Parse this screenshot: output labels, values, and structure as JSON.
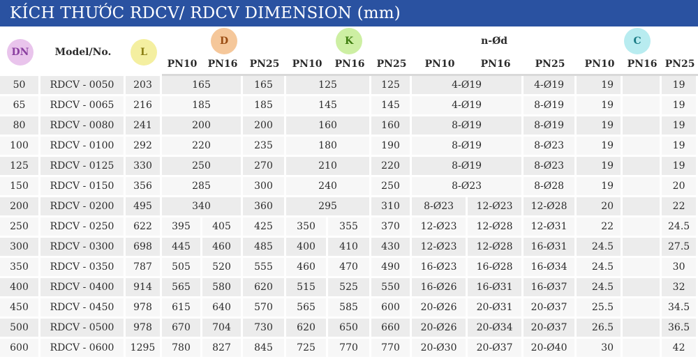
{
  "title": "KÍCH THƯỚC RDCV/ RDCV DIMENSION (mm)",
  "headers": {
    "dn": "DN",
    "model": "Model/No.",
    "l": "L",
    "d": "D",
    "k": "K",
    "nod": "n-Ød",
    "c": "C",
    "pn10": "PN10",
    "pn16": "PN16",
    "pn25": "PN25"
  },
  "colors": {
    "title_bar": "#2a52a1",
    "dn_bubble": "#e9c4ec",
    "l_bubble": "#f4efa0",
    "d_bubble": "#f5c79a",
    "k_bubble": "#cdefa3",
    "c_bubble": "#b8ecf0"
  },
  "rows": [
    {
      "dn": "50",
      "model": "RDCV - 0050",
      "l": "203",
      "d_merged": "165",
      "d25": "165",
      "k_merged": "125",
      "k25": "125",
      "n_merged": "4-Ø19",
      "n25": "4-Ø19",
      "c10": "19",
      "c16": "",
      "c25": "19"
    },
    {
      "dn": "65",
      "model": "RDCV - 0065",
      "l": "216",
      "d_merged": "185",
      "d25": "185",
      "k_merged": "145",
      "k25": "145",
      "n_merged": "4-Ø19",
      "n25": "8-Ø19",
      "c10": "19",
      "c16": "",
      "c25": "19"
    },
    {
      "dn": "80",
      "model": "RDCV - 0080",
      "l": "241",
      "d_merged": "200",
      "d25": "200",
      "k_merged": "160",
      "k25": "160",
      "n_merged": "8-Ø19",
      "n25": "8-Ø19",
      "c10": "19",
      "c16": "",
      "c25": "19"
    },
    {
      "dn": "100",
      "model": "RDCV - 0100",
      "l": "292",
      "d_merged": "220",
      "d25": "235",
      "k_merged": "180",
      "k25": "190",
      "n_merged": "8-Ø19",
      "n25": "8-Ø23",
      "c10": "19",
      "c16": "",
      "c25": "19"
    },
    {
      "dn": "125",
      "model": "RDCV - 0125",
      "l": "330",
      "d_merged": "250",
      "d25": "270",
      "k_merged": "210",
      "k25": "220",
      "n_merged": "8-Ø19",
      "n25": "8-Ø23",
      "c10": "19",
      "c16": "",
      "c25": "19"
    },
    {
      "dn": "150",
      "model": "RDCV - 0150",
      "l": "356",
      "d_merged": "285",
      "d25": "300",
      "k_merged": "240",
      "k25": "250",
      "n_merged": "8-Ø23",
      "n25": "8-Ø28",
      "c10": "19",
      "c16": "",
      "c25": "20"
    },
    {
      "dn": "200",
      "model": "RDCV - 0200",
      "l": "495",
      "d_merged": "340",
      "d25": "360",
      "k_merged": "295",
      "k25": "310",
      "n10": "8-Ø23",
      "n16": "12-Ø23",
      "n25": "12-Ø28",
      "c10": "20",
      "c16": "",
      "c25": "22"
    },
    {
      "dn": "250",
      "model": "RDCV - 0250",
      "l": "622",
      "d10": "395",
      "d16": "405",
      "d25": "425",
      "k10": "350",
      "k16": "355",
      "k25": "370",
      "n10": "12-Ø23",
      "n16": "12-Ø28",
      "n25": "12-Ø31",
      "c10": "22",
      "c16": "",
      "c25": "24.5"
    },
    {
      "dn": "300",
      "model": "RDCV - 0300",
      "l": "698",
      "d10": "445",
      "d16": "460",
      "d25": "485",
      "k10": "400",
      "k16": "410",
      "k25": "430",
      "n10": "12-Ø23",
      "n16": "12-Ø28",
      "n25": "16-Ø31",
      "c10": "24.5",
      "c16": "",
      "c25": "27.5"
    },
    {
      "dn": "350",
      "model": "RDCV - 0350",
      "l": "787",
      "d10": "505",
      "d16": "520",
      "d25": "555",
      "k10": "460",
      "k16": "470",
      "k25": "490",
      "n10": "16-Ø23",
      "n16": "16-Ø28",
      "n25": "16-Ø34",
      "c10": "24.5",
      "c16": "",
      "c25": "30"
    },
    {
      "dn": "400",
      "model": "RDCV - 0400",
      "l": "914",
      "d10": "565",
      "d16": "580",
      "d25": "620",
      "k10": "515",
      "k16": "525",
      "k25": "550",
      "n10": "16-Ø26",
      "n16": "16-Ø31",
      "n25": "16-Ø37",
      "c10": "24.5",
      "c16": "",
      "c25": "32"
    },
    {
      "dn": "450",
      "model": "RDCV - 0450",
      "l": "978",
      "d10": "615",
      "d16": "640",
      "d25": "570",
      "k10": "565",
      "k16": "585",
      "k25": "600",
      "n10": "20-Ø26",
      "n16": "20-Ø31",
      "n25": "20-Ø37",
      "c10": "25.5",
      "c16": "",
      "c25": "34.5"
    },
    {
      "dn": "500",
      "model": "RDCV - 0500",
      "l": "978",
      "d10": "670",
      "d16": "704",
      "d25": "730",
      "k10": "620",
      "k16": "650",
      "k25": "660",
      "n10": "20-Ø26",
      "n16": "20-Ø34",
      "n25": "20-Ø37",
      "c10": "26.5",
      "c16": "",
      "c25": "36.5"
    },
    {
      "dn": "600",
      "model": "RDCV - 0600",
      "l": "1295",
      "d10": "780",
      "d16": "827",
      "d25": "845",
      "k10": "725",
      "k16": "770",
      "k25": "770",
      "n10": "20-Ø30",
      "n16": "20-Ø37",
      "n25": "20-Ø40",
      "c10": "30",
      "c16": "",
      "c25": "42"
    }
  ]
}
